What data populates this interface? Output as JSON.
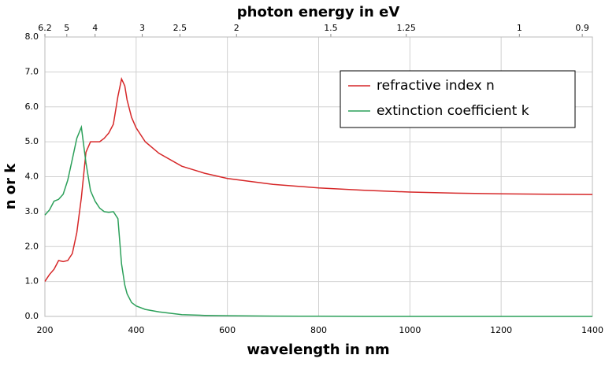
{
  "chart_data": {
    "type": "line",
    "x_label": "wavelength in nm",
    "x2_label": "photon energy in eV",
    "y_label": "n or k",
    "x": [
      200,
      210,
      220,
      230,
      240,
      250,
      260,
      270,
      280,
      290,
      300,
      310,
      320,
      330,
      340,
      350,
      360,
      368,
      375,
      380,
      390,
      400,
      420,
      450,
      500,
      550,
      600,
      700,
      800,
      900,
      1000,
      1100,
      1200,
      1300,
      1400
    ],
    "series": [
      {
        "name": "refractive index n",
        "color": "#d62728",
        "values": [
          1.0,
          1.2,
          1.35,
          1.6,
          1.57,
          1.6,
          1.8,
          2.4,
          3.4,
          4.7,
          5.0,
          5.0,
          5.0,
          5.1,
          5.25,
          5.5,
          6.3,
          6.8,
          6.6,
          6.2,
          5.7,
          5.4,
          5.0,
          4.67,
          4.3,
          4.1,
          3.95,
          3.78,
          3.68,
          3.61,
          3.56,
          3.53,
          3.51,
          3.5,
          3.49
        ]
      },
      {
        "name": "extinction coefficient k",
        "color": "#2ca05a",
        "values": [
          2.9,
          3.05,
          3.3,
          3.35,
          3.5,
          3.9,
          4.5,
          5.1,
          5.42,
          4.4,
          3.6,
          3.3,
          3.1,
          3.0,
          2.98,
          3.0,
          2.8,
          1.5,
          0.9,
          0.65,
          0.4,
          0.3,
          0.2,
          0.13,
          0.05,
          0.03,
          0.02,
          0.01,
          0.005,
          0,
          0,
          0,
          0,
          0,
          0
        ]
      }
    ],
    "xlim": [
      200,
      1400
    ],
    "xticks": [
      200,
      400,
      600,
      800,
      1000,
      1200,
      1400
    ],
    "x2ticks": [
      6.2,
      5.0,
      4.0,
      3.0,
      2.5,
      2.0,
      1.5,
      1.25,
      1.0,
      0.9
    ],
    "ylim": [
      0,
      8
    ],
    "yticks": [
      {
        "value": 0,
        "label": "0.0"
      },
      {
        "value": 1,
        "label": "1.0"
      },
      {
        "value": 2,
        "label": "2.0"
      },
      {
        "value": 3,
        "label": "3.0"
      },
      {
        "value": 4,
        "label": "4.0"
      },
      {
        "value": 5,
        "label": "5.0"
      },
      {
        "value": 6,
        "label": "6.0"
      },
      {
        "value": 7,
        "label": "7.0"
      },
      {
        "value": 8,
        "label": "8.0"
      }
    ],
    "grid": true,
    "legend": "upper right"
  }
}
